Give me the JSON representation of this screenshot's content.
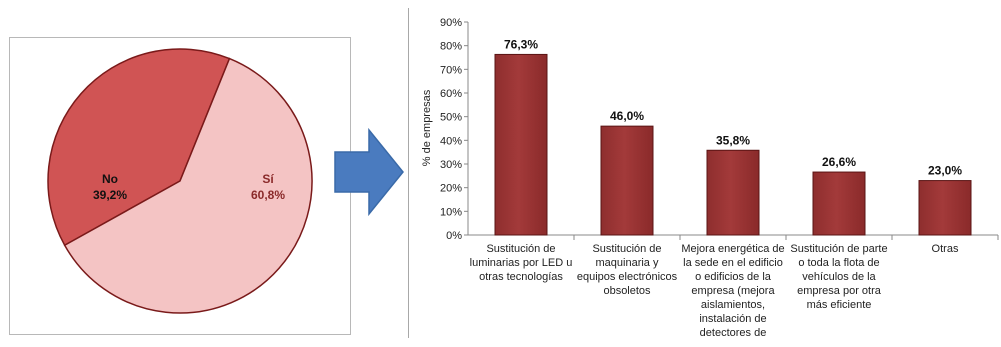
{
  "chart_data": [
    {
      "type": "pie",
      "title": "",
      "slices": [
        {
          "name": "No",
          "label": "No",
          "value_label": "39,2%",
          "value": 39.2,
          "color": "#d05454"
        },
        {
          "name": "Sí",
          "label": "Sí",
          "value_label": "60,8%",
          "value": 60.8,
          "color": "#f4c4c4"
        }
      ],
      "colors": {
        "no": "#d05454",
        "si": "#f4c4c4",
        "edge": "#7a1a1a"
      }
    },
    {
      "type": "bar",
      "title": "",
      "ylabel": "% de empresas",
      "xlabel": "",
      "ylim": [
        0,
        90
      ],
      "yticks": [
        "0%",
        "10%",
        "20%",
        "30%",
        "40%",
        "50%",
        "60%",
        "70%",
        "80%",
        "90%"
      ],
      "categories": [
        "Sustitución de luminarias por LED u otras tecnologías",
        "Sustitución de maquinaria y equipos electrónicos obsoletos",
        "Mejora energética de la sede en el edificio o edificios de la empresa (mejora aislamientos, instalación de detectores de",
        "Sustitución de parte o toda la flota de vehículos de la empresa por otra más eficiente",
        "Otras"
      ],
      "values": [
        76.3,
        46.0,
        35.8,
        26.6,
        23.0
      ],
      "value_labels": [
        "76,3%",
        "46,0%",
        "35,8%",
        "26,6%",
        "23,0%"
      ],
      "bar_color": "#a33a3a",
      "grid": false
    }
  ],
  "arrow": {
    "icon": "right-arrow-icon",
    "color": "#4a7bbf"
  }
}
